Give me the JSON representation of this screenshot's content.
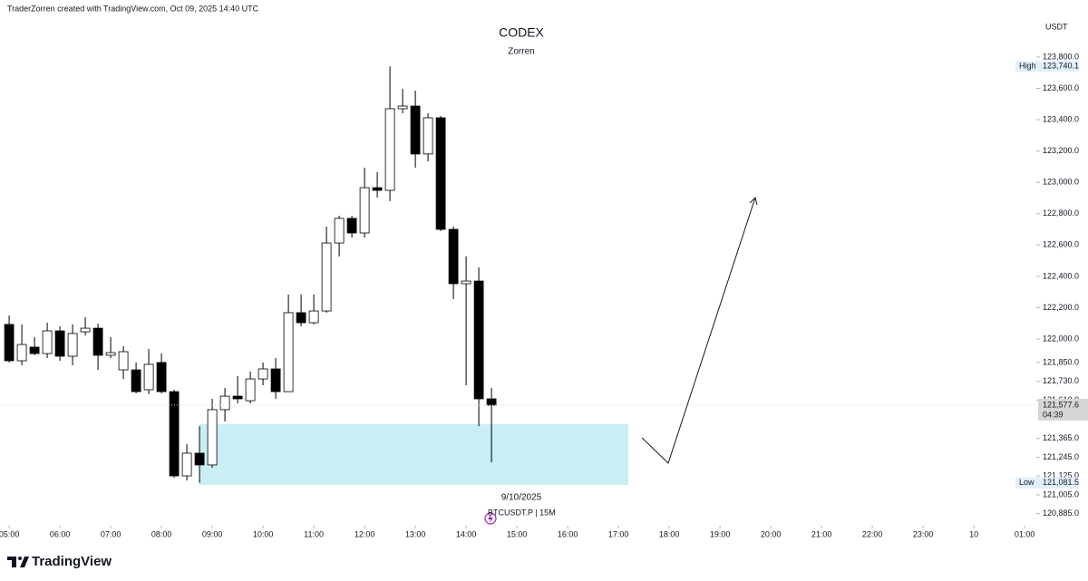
{
  "header": {
    "attribution": "TraderZorren created with TradingView.com, Oct 09, 2025 14:40 UTC"
  },
  "chart_data": {
    "type": "candlestick",
    "title": "CODEX",
    "subtitle": "Zorren",
    "series_label": "BTCUSDT.P | 15M",
    "date_label": "9/10/2025",
    "currency": "USDT",
    "up_color": "#ffffff",
    "down_color": "#000000",
    "wick_color": "#000000",
    "x": [
      5,
      5.25,
      5.5,
      5.75,
      6,
      6.25,
      6.5,
      6.75,
      7,
      7.25,
      7.5,
      7.75,
      8,
      8.25,
      8.5,
      8.75,
      9,
      9.25,
      9.5,
      9.75,
      10,
      10.25,
      10.5,
      10.75,
      11,
      11.25,
      11.5,
      11.75,
      12,
      12.25,
      12.5,
      12.75,
      13,
      13.25,
      13.5,
      13.75,
      14,
      14.25,
      14.5
    ],
    "open": [
      122093,
      121861,
      121948,
      121907,
      122052,
      121890,
      122046,
      122069,
      121896,
      121803,
      121803,
      121676,
      121850,
      121664,
      121126,
      121271,
      121196,
      121549,
      121635,
      121606,
      121745,
      121809,
      121664,
      122168,
      122104,
      122179,
      122613,
      122770,
      122677,
      122966,
      122949,
      123470,
      123487,
      123181,
      123412,
      122700,
      122353,
      122370,
      121618
    ],
    "high": [
      122150,
      122093,
      122012,
      122104,
      122081,
      122093,
      122139,
      122098,
      122012,
      121954,
      121850,
      121936,
      121907,
      121676,
      121329,
      121444,
      121618,
      121688,
      121763,
      121792,
      121850,
      121878,
      122284,
      122284,
      122284,
      122718,
      122787,
      122787,
      123094,
      123065,
      123740.1,
      123597,
      123586,
      123441,
      123424,
      122718,
      122527,
      122457,
      121688
    ],
    "low": [
      121850,
      121832,
      121896,
      121878,
      121861,
      121832,
      122023,
      121803,
      121878,
      121745,
      121653,
      121647,
      121653,
      121115,
      121097,
      121081.5,
      121178,
      121473,
      121589,
      121589,
      121705,
      121618,
      121664,
      122081,
      122093,
      122168,
      122527,
      122648,
      122648,
      122903,
      122880,
      123441,
      123094,
      123134,
      122689,
      122255,
      121705,
      121444,
      121213
    ],
    "close": [
      121861,
      121965,
      121907,
      122052,
      121890,
      122035,
      122069,
      121896,
      121913,
      121919,
      121664,
      121838,
      121664,
      121126,
      121271,
      121196,
      121549,
      121635,
      121618,
      121745,
      121809,
      121664,
      122168,
      122104,
      122179,
      122613,
      122770,
      122677,
      122966,
      122949,
      123470,
      123487,
      123181,
      123412,
      122700,
      122353,
      122370,
      121618,
      121577.6
    ],
    "xlim": [
      4.82,
      25.23
    ],
    "ylim": [
      120808,
      124060
    ],
    "xticks": [
      {
        "value": 5,
        "label": "05:00"
      },
      {
        "value": 6,
        "label": "06:00"
      },
      {
        "value": 7,
        "label": "07:00"
      },
      {
        "value": 8,
        "label": "08:00"
      },
      {
        "value": 9,
        "label": "09:00"
      },
      {
        "value": 10,
        "label": "10:00"
      },
      {
        "value": 11,
        "label": "11:00"
      },
      {
        "value": 12,
        "label": "12:00"
      },
      {
        "value": 13,
        "label": "13:00"
      },
      {
        "value": 14,
        "label": "14:00"
      },
      {
        "value": 15,
        "label": "15:00"
      },
      {
        "value": 16,
        "label": "16:00"
      },
      {
        "value": 17,
        "label": "17:00"
      },
      {
        "value": 18,
        "label": "18:00"
      },
      {
        "value": 19,
        "label": "19:00"
      },
      {
        "value": 20,
        "label": "20:00"
      },
      {
        "value": 21,
        "label": "21:00"
      },
      {
        "value": 22,
        "label": "22:00"
      },
      {
        "value": 23,
        "label": "23:00"
      },
      {
        "value": 24,
        "label": "10"
      },
      {
        "value": 25,
        "label": "01:00"
      }
    ],
    "yticks": [
      {
        "value": 123800,
        "label": "123,800.0"
      },
      {
        "value": 123600,
        "label": "123,600.0"
      },
      {
        "value": 123400,
        "label": "123,400.0"
      },
      {
        "value": 123200,
        "label": "123,200.0"
      },
      {
        "value": 123000,
        "label": "123,000.0"
      },
      {
        "value": 122800,
        "label": "122,800.0"
      },
      {
        "value": 122600,
        "label": "122,600.0"
      },
      {
        "value": 122400,
        "label": "122,400.0"
      },
      {
        "value": 122200,
        "label": "122,200.0"
      },
      {
        "value": 122000,
        "label": "122,000.0"
      },
      {
        "value": 121850,
        "label": "121,850.0"
      },
      {
        "value": 121730,
        "label": "121,730.0"
      },
      {
        "value": 121610,
        "label": "121,610.0"
      },
      {
        "value": 121365,
        "label": "121,365.0"
      },
      {
        "value": 121245,
        "label": "121,245.0"
      },
      {
        "value": 121125,
        "label": "121,125.0"
      },
      {
        "value": 121005,
        "label": "121,005.0"
      },
      {
        "value": 120885,
        "label": "120,885.0"
      }
    ],
    "high_marker": {
      "text": "High",
      "value": 123740.1,
      "label": "123,740.1"
    },
    "low_marker": {
      "text": "Low",
      "value": 121081.5,
      "label": "121,081.5"
    },
    "last_price": {
      "value": 121577.6,
      "label": "121,577.6",
      "countdown": "04:39"
    }
  },
  "footer": {
    "logo": "TradingView"
  }
}
